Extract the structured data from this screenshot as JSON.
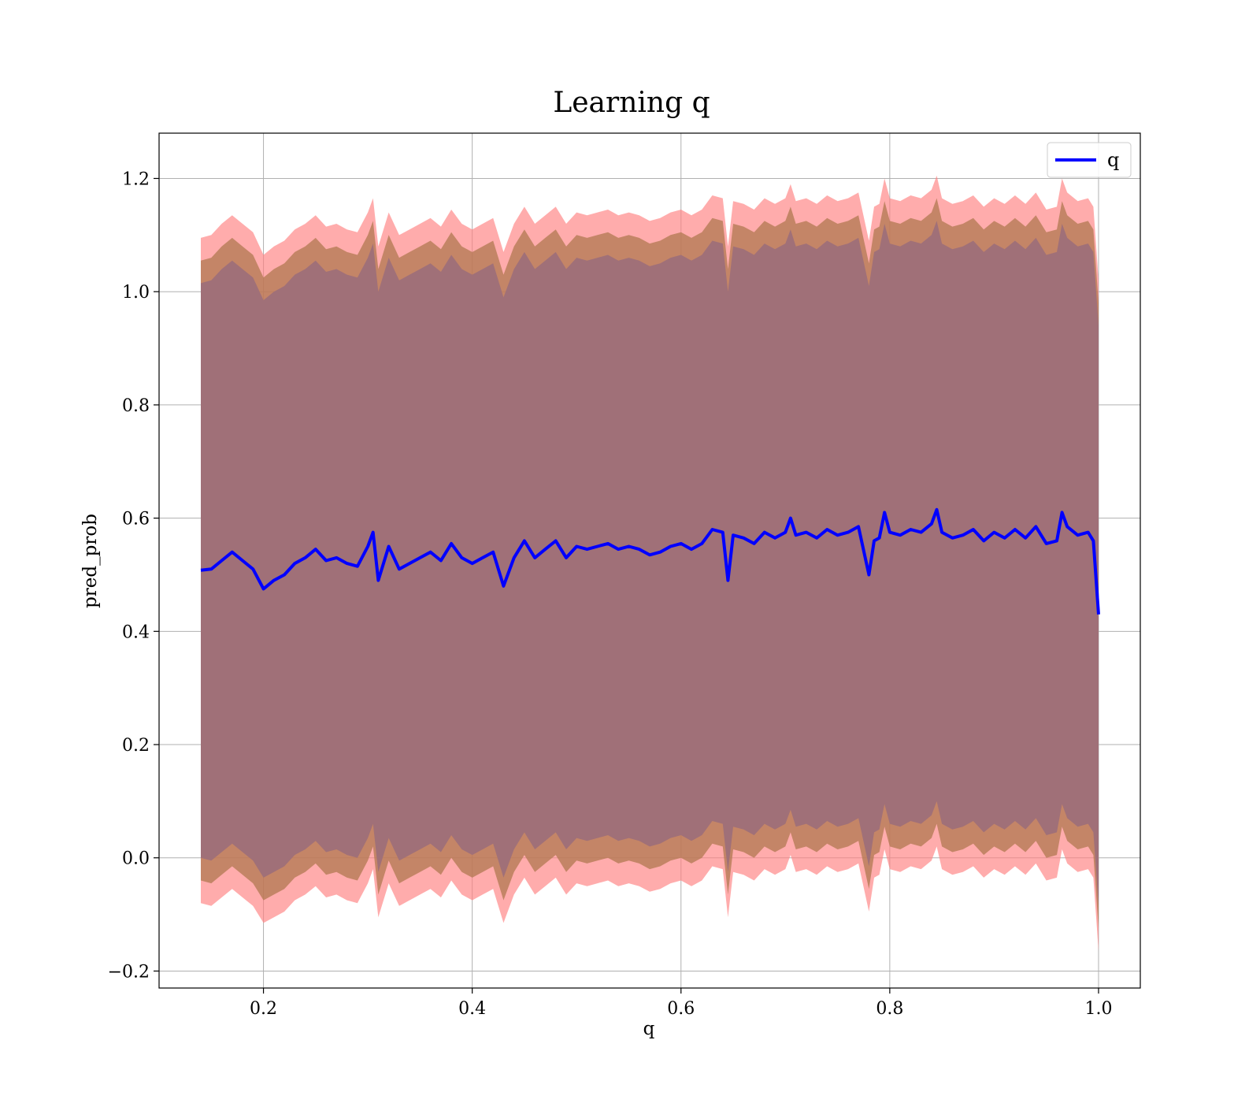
{
  "chart_data": {
    "type": "area",
    "title": "Learning q",
    "xlabel": "q",
    "ylabel": "pred_prob",
    "xlim": [
      0.1,
      1.04
    ],
    "ylim": [
      -0.23,
      1.28
    ],
    "xticks": [
      0.2,
      0.4,
      0.6,
      0.8,
      1.0
    ],
    "xtick_labels": [
      "0.2",
      "0.4",
      "0.6",
      "0.8",
      "1.0"
    ],
    "yticks": [
      -0.2,
      0.0,
      0.2,
      0.4,
      0.6,
      0.8,
      1.0,
      1.2
    ],
    "ytick_labels": [
      "−0.2",
      "0.0",
      "0.2",
      "0.4",
      "0.6",
      "0.8",
      "1.0",
      "1.2"
    ],
    "grid": true,
    "legend": {
      "placement": "top-right",
      "entries": [
        {
          "label": "q",
          "color": "#0000ff"
        }
      ]
    },
    "colors": {
      "line": "#0000ff",
      "outer_band": "#ff8080",
      "middle_band": "#b07850",
      "inner_band": "#a07078",
      "grid": "#b0b0b0"
    },
    "series": [
      {
        "name": "q",
        "x": [
          0.14,
          0.15,
          0.16,
          0.17,
          0.18,
          0.19,
          0.2,
          0.21,
          0.22,
          0.23,
          0.24,
          0.25,
          0.26,
          0.27,
          0.28,
          0.29,
          0.3,
          0.305,
          0.31,
          0.32,
          0.33,
          0.34,
          0.35,
          0.36,
          0.37,
          0.38,
          0.39,
          0.4,
          0.41,
          0.42,
          0.43,
          0.44,
          0.45,
          0.46,
          0.47,
          0.48,
          0.49,
          0.5,
          0.51,
          0.52,
          0.53,
          0.54,
          0.55,
          0.56,
          0.57,
          0.58,
          0.59,
          0.6,
          0.61,
          0.62,
          0.63,
          0.64,
          0.645,
          0.65,
          0.66,
          0.67,
          0.68,
          0.69,
          0.7,
          0.705,
          0.71,
          0.72,
          0.73,
          0.74,
          0.75,
          0.76,
          0.77,
          0.78,
          0.785,
          0.79,
          0.795,
          0.8,
          0.81,
          0.82,
          0.83,
          0.84,
          0.845,
          0.85,
          0.86,
          0.87,
          0.88,
          0.89,
          0.9,
          0.91,
          0.92,
          0.93,
          0.94,
          0.95,
          0.96,
          0.965,
          0.97,
          0.98,
          0.99,
          0.995,
          1.0
        ],
        "y": [
          0.508,
          0.51,
          0.525,
          0.54,
          0.525,
          0.51,
          0.475,
          0.49,
          0.5,
          0.52,
          0.53,
          0.545,
          0.525,
          0.53,
          0.52,
          0.515,
          0.55,
          0.575,
          0.49,
          0.55,
          0.51,
          0.52,
          0.53,
          0.54,
          0.525,
          0.555,
          0.53,
          0.52,
          0.53,
          0.54,
          0.48,
          0.53,
          0.56,
          0.53,
          0.545,
          0.56,
          0.53,
          0.55,
          0.545,
          0.55,
          0.555,
          0.545,
          0.55,
          0.545,
          0.535,
          0.54,
          0.55,
          0.555,
          0.545,
          0.555,
          0.58,
          0.575,
          0.49,
          0.57,
          0.565,
          0.555,
          0.575,
          0.565,
          0.575,
          0.6,
          0.57,
          0.575,
          0.565,
          0.58,
          0.57,
          0.575,
          0.585,
          0.5,
          0.56,
          0.565,
          0.61,
          0.575,
          0.57,
          0.58,
          0.575,
          0.59,
          0.615,
          0.575,
          0.565,
          0.57,
          0.58,
          0.56,
          0.575,
          0.565,
          0.58,
          0.565,
          0.585,
          0.555,
          0.56,
          0.61,
          0.585,
          0.57,
          0.575,
          0.56,
          0.43
        ]
      }
    ],
    "bands": [
      {
        "name": "",
        "lower": [
          -0.08,
          -0.085,
          -0.07,
          -0.055,
          -0.07,
          -0.085,
          -0.115,
          -0.105,
          -0.095,
          -0.075,
          -0.065,
          -0.05,
          -0.07,
          -0.065,
          -0.075,
          -0.08,
          -0.045,
          -0.02,
          -0.105,
          -0.045,
          -0.085,
          -0.075,
          -0.065,
          -0.055,
          -0.07,
          -0.04,
          -0.065,
          -0.075,
          -0.065,
          -0.055,
          -0.115,
          -0.065,
          -0.035,
          -0.065,
          -0.05,
          -0.035,
          -0.065,
          -0.045,
          -0.05,
          -0.045,
          -0.04,
          -0.05,
          -0.045,
          -0.05,
          -0.06,
          -0.055,
          -0.045,
          -0.04,
          -0.05,
          -0.04,
          -0.015,
          -0.02,
          -0.105,
          -0.025,
          -0.03,
          -0.04,
          -0.02,
          -0.03,
          -0.02,
          0.005,
          -0.025,
          -0.02,
          -0.03,
          -0.015,
          -0.025,
          -0.02,
          -0.01,
          -0.095,
          -0.035,
          -0.03,
          0.015,
          -0.02,
          -0.025,
          -0.015,
          -0.02,
          -0.005,
          0.02,
          -0.02,
          -0.03,
          -0.025,
          -0.015,
          -0.035,
          -0.02,
          -0.03,
          -0.015,
          -0.03,
          -0.01,
          -0.04,
          -0.035,
          0.015,
          -0.01,
          -0.025,
          -0.02,
          -0.035,
          -0.165
        ],
        "upper": [
          1.095,
          1.1,
          1.12,
          1.135,
          1.12,
          1.105,
          1.065,
          1.08,
          1.09,
          1.11,
          1.12,
          1.135,
          1.115,
          1.12,
          1.11,
          1.105,
          1.14,
          1.165,
          1.08,
          1.14,
          1.1,
          1.11,
          1.12,
          1.13,
          1.115,
          1.145,
          1.12,
          1.11,
          1.12,
          1.13,
          1.07,
          1.12,
          1.15,
          1.12,
          1.135,
          1.15,
          1.12,
          1.14,
          1.135,
          1.14,
          1.145,
          1.135,
          1.14,
          1.135,
          1.125,
          1.13,
          1.14,
          1.145,
          1.135,
          1.145,
          1.17,
          1.165,
          1.08,
          1.16,
          1.155,
          1.145,
          1.165,
          1.155,
          1.165,
          1.19,
          1.16,
          1.165,
          1.155,
          1.17,
          1.16,
          1.165,
          1.175,
          1.09,
          1.15,
          1.155,
          1.2,
          1.165,
          1.16,
          1.17,
          1.165,
          1.18,
          1.205,
          1.165,
          1.155,
          1.16,
          1.17,
          1.15,
          1.165,
          1.155,
          1.17,
          1.155,
          1.175,
          1.145,
          1.15,
          1.2,
          1.175,
          1.16,
          1.165,
          1.15,
          1.02
        ]
      },
      {
        "name": "",
        "lower": [
          -0.04,
          -0.045,
          -0.03,
          -0.015,
          -0.03,
          -0.045,
          -0.075,
          -0.065,
          -0.055,
          -0.035,
          -0.025,
          -0.01,
          -0.03,
          -0.025,
          -0.035,
          -0.04,
          -0.005,
          0.02,
          -0.065,
          -0.005,
          -0.045,
          -0.035,
          -0.025,
          -0.015,
          -0.03,
          0.0,
          -0.025,
          -0.035,
          -0.025,
          -0.015,
          -0.075,
          -0.025,
          0.005,
          -0.025,
          -0.01,
          0.005,
          -0.025,
          -0.005,
          -0.01,
          -0.005,
          0.0,
          -0.01,
          -0.005,
          -0.01,
          -0.02,
          -0.015,
          -0.005,
          0.0,
          -0.01,
          0.0,
          0.025,
          0.02,
          -0.065,
          0.015,
          0.01,
          0.0,
          0.02,
          0.01,
          0.02,
          0.045,
          0.015,
          0.02,
          0.01,
          0.025,
          0.015,
          0.02,
          0.03,
          -0.055,
          0.005,
          0.01,
          0.055,
          0.02,
          0.015,
          0.025,
          0.02,
          0.035,
          0.06,
          0.02,
          0.01,
          0.015,
          0.025,
          0.005,
          0.02,
          0.01,
          0.025,
          0.01,
          0.03,
          0.0,
          0.005,
          0.055,
          0.03,
          0.015,
          0.02,
          0.005,
          -0.125
        ],
        "upper": [
          1.055,
          1.06,
          1.08,
          1.095,
          1.08,
          1.065,
          1.025,
          1.04,
          1.05,
          1.07,
          1.08,
          1.095,
          1.075,
          1.08,
          1.07,
          1.065,
          1.1,
          1.125,
          1.04,
          1.1,
          1.06,
          1.07,
          1.08,
          1.09,
          1.075,
          1.105,
          1.08,
          1.07,
          1.08,
          1.09,
          1.03,
          1.08,
          1.11,
          1.08,
          1.095,
          1.11,
          1.08,
          1.1,
          1.095,
          1.1,
          1.105,
          1.095,
          1.1,
          1.095,
          1.085,
          1.09,
          1.1,
          1.105,
          1.095,
          1.105,
          1.13,
          1.125,
          1.04,
          1.12,
          1.115,
          1.105,
          1.125,
          1.115,
          1.125,
          1.15,
          1.12,
          1.125,
          1.115,
          1.13,
          1.12,
          1.125,
          1.135,
          1.05,
          1.11,
          1.115,
          1.16,
          1.125,
          1.12,
          1.13,
          1.125,
          1.14,
          1.165,
          1.125,
          1.115,
          1.12,
          1.13,
          1.11,
          1.125,
          1.115,
          1.13,
          1.115,
          1.135,
          1.105,
          1.11,
          1.16,
          1.135,
          1.12,
          1.125,
          1.11,
          0.98
        ]
      },
      {
        "name": "",
        "lower": [
          0.0,
          -0.005,
          0.01,
          0.025,
          0.01,
          -0.005,
          -0.035,
          -0.025,
          -0.015,
          0.005,
          0.015,
          0.03,
          0.01,
          0.015,
          0.005,
          0.0,
          0.035,
          0.06,
          -0.025,
          0.035,
          -0.005,
          0.005,
          0.015,
          0.025,
          0.01,
          0.04,
          0.015,
          0.005,
          0.015,
          0.025,
          -0.035,
          0.015,
          0.045,
          0.015,
          0.03,
          0.045,
          0.015,
          0.035,
          0.03,
          0.035,
          0.04,
          0.03,
          0.035,
          0.03,
          0.02,
          0.025,
          0.035,
          0.04,
          0.03,
          0.04,
          0.065,
          0.06,
          -0.025,
          0.055,
          0.05,
          0.04,
          0.06,
          0.05,
          0.06,
          0.085,
          0.055,
          0.06,
          0.05,
          0.065,
          0.055,
          0.06,
          0.07,
          -0.015,
          0.045,
          0.05,
          0.095,
          0.06,
          0.055,
          0.065,
          0.06,
          0.075,
          0.1,
          0.06,
          0.05,
          0.055,
          0.065,
          0.045,
          0.06,
          0.05,
          0.065,
          0.05,
          0.07,
          0.04,
          0.045,
          0.095,
          0.07,
          0.055,
          0.06,
          0.045,
          -0.085
        ],
        "upper": [
          1.015,
          1.02,
          1.04,
          1.055,
          1.04,
          1.025,
          0.985,
          1.0,
          1.01,
          1.03,
          1.04,
          1.055,
          1.035,
          1.04,
          1.03,
          1.025,
          1.06,
          1.085,
          1.0,
          1.06,
          1.02,
          1.03,
          1.04,
          1.05,
          1.035,
          1.065,
          1.04,
          1.03,
          1.04,
          1.05,
          0.99,
          1.04,
          1.07,
          1.04,
          1.055,
          1.07,
          1.04,
          1.06,
          1.055,
          1.06,
          1.065,
          1.055,
          1.06,
          1.055,
          1.045,
          1.05,
          1.06,
          1.065,
          1.055,
          1.065,
          1.09,
          1.085,
          1.0,
          1.08,
          1.075,
          1.065,
          1.085,
          1.075,
          1.085,
          1.11,
          1.08,
          1.085,
          1.075,
          1.09,
          1.08,
          1.085,
          1.095,
          1.01,
          1.07,
          1.075,
          1.12,
          1.085,
          1.08,
          1.09,
          1.085,
          1.1,
          1.125,
          1.085,
          1.075,
          1.08,
          1.09,
          1.07,
          1.085,
          1.075,
          1.09,
          1.075,
          1.095,
          1.065,
          1.07,
          1.12,
          1.095,
          1.08,
          1.085,
          1.07,
          0.94
        ]
      }
    ]
  }
}
